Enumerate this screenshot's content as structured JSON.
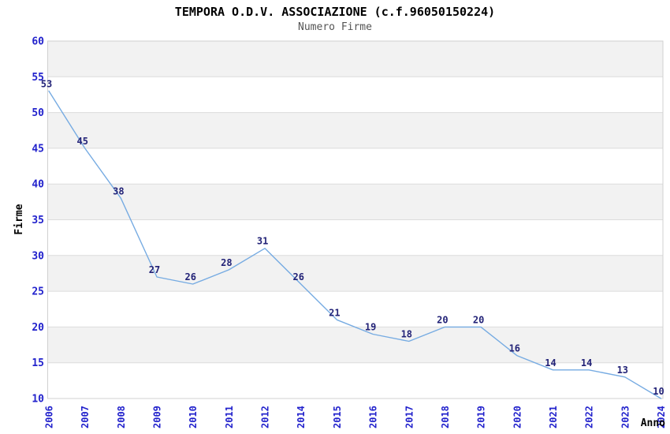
{
  "header": {
    "title": "TEMPORA O.D.V. ASSOCIAZIONE (c.f.96050150224)",
    "subtitle": "Numero Firme"
  },
  "chart_data": {
    "type": "line",
    "title": "TEMPORA O.D.V. ASSOCIAZIONE (c.f.96050150224)",
    "subtitle": "Numero Firme",
    "xlabel": "Anno",
    "ylabel": "Firme",
    "categories": [
      "2006",
      "2007",
      "2008",
      "2009",
      "2010",
      "2011",
      "2012",
      "2014",
      "2015",
      "2016",
      "2017",
      "2018",
      "2019",
      "2020",
      "2021",
      "2022",
      "2023",
      "2024"
    ],
    "values": [
      53,
      45,
      38,
      27,
      26,
      28,
      31,
      26,
      21,
      19,
      18,
      20,
      20,
      16,
      14,
      14,
      13,
      10
    ],
    "data_labels_shown": true,
    "ylim": [
      10,
      60
    ],
    "ytick_step": 5,
    "yticks": [
      60,
      55,
      50,
      45,
      40,
      35,
      30,
      25,
      20,
      15,
      10
    ],
    "x_tick_rotation_degrees": 90,
    "grid": "horizontal-bands-alternating",
    "legend": "none",
    "colors": {
      "line": "#76abe2",
      "tick_label": "#2222cc",
      "data_label": "#222277",
      "band_gray": "#f2f2f2",
      "band_white": "#ffffff",
      "gridline": "#dcdcdc",
      "plot_border": "#d0d0d0",
      "title_text": "#000000",
      "subtitle_text": "#555555",
      "axis_name_text": "#000000",
      "background": "#ffffff"
    }
  }
}
